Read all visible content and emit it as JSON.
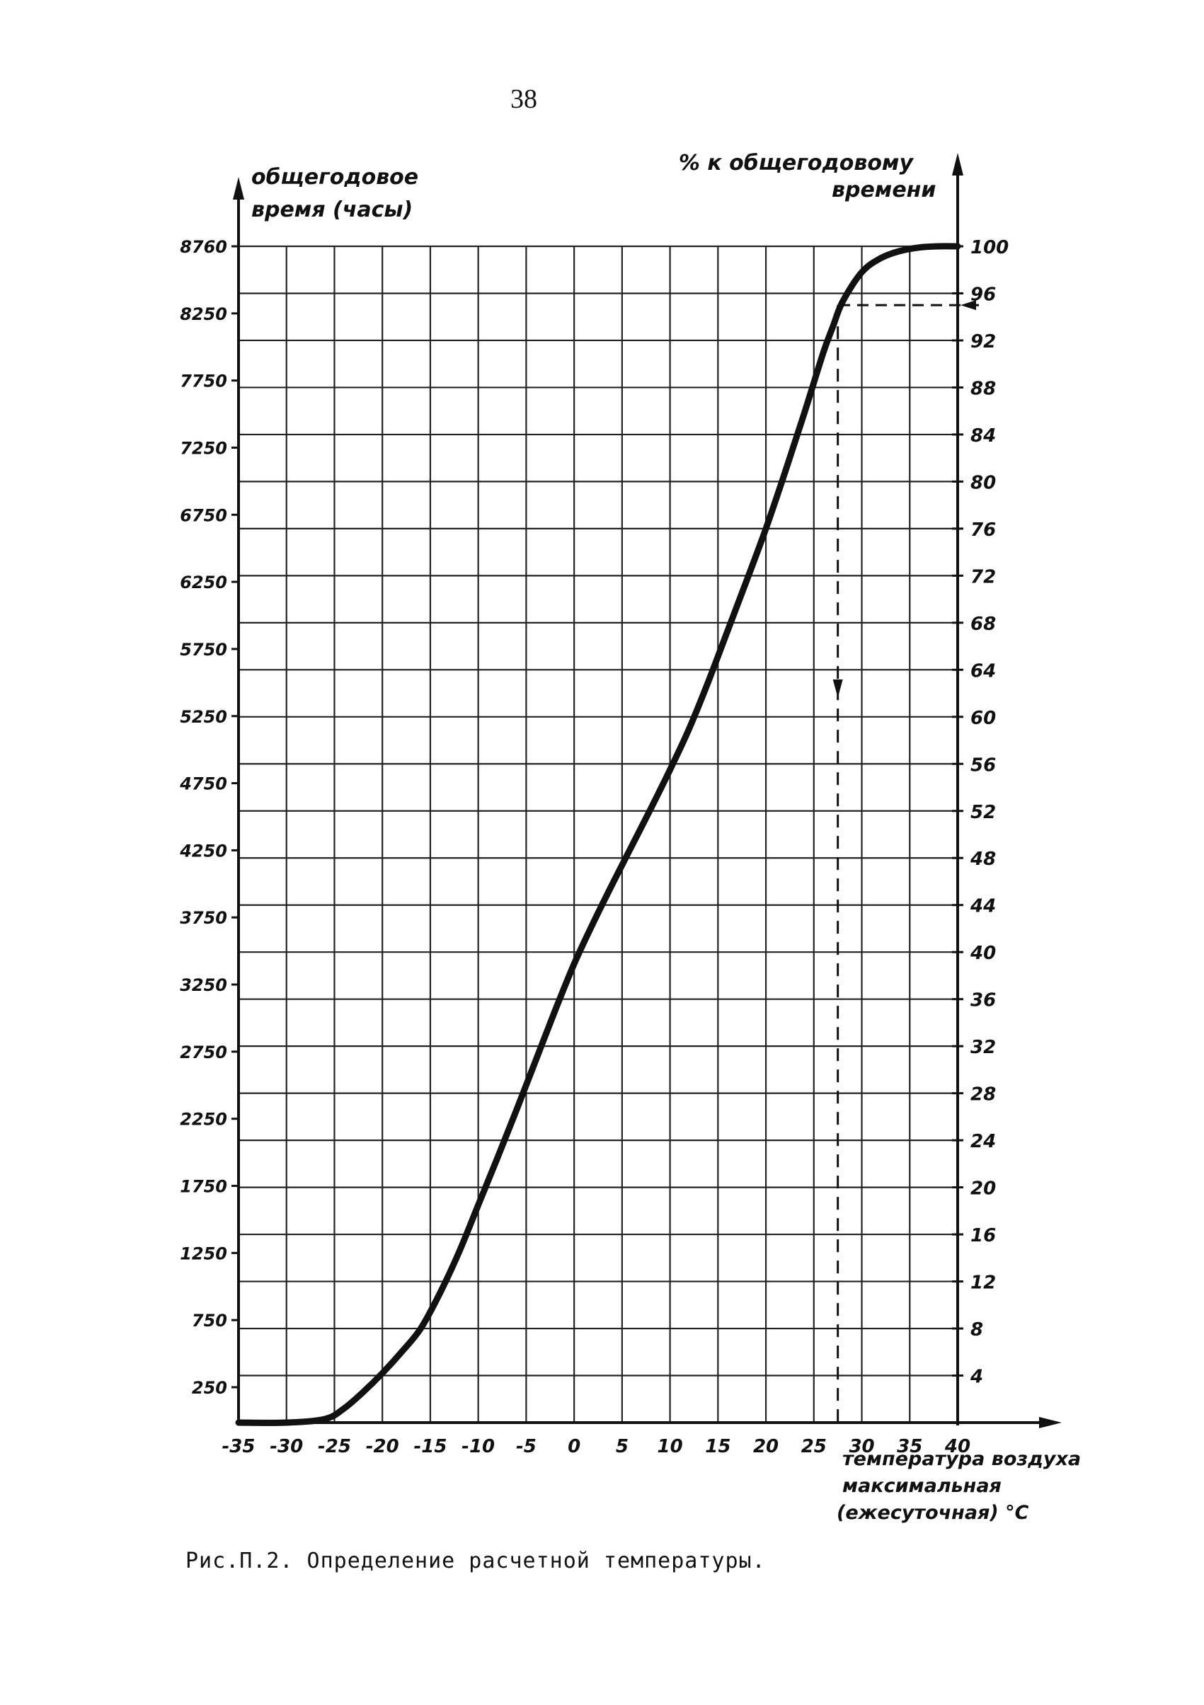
{
  "page_number": "38",
  "caption": "Рис.П.2. Определение расчетной температуры.",
  "left_axis_label": [
    "общегодовое",
    "время (часы)"
  ],
  "right_axis_label": [
    "% к общегодовому",
    "времени"
  ],
  "x_axis_label": [
    "температура воздуха",
    "максимальная",
    "(ежесуточная) °С"
  ],
  "chart_data": {
    "type": "line",
    "title": "",
    "xlabel": "температура воздуха максимальная (ежесуточная) °С",
    "ylabel_left": "общегодовое время (часы)",
    "ylabel_right": "% к общегодовому времени",
    "xlim": [
      -35,
      40
    ],
    "ylim_right": [
      0,
      100
    ],
    "x_ticks": [
      "-35",
      "-30",
      "-25",
      "-20",
      "-15",
      "-10",
      "-5",
      "0",
      "5",
      "10",
      "15",
      "20",
      "25",
      "30",
      "35",
      "40"
    ],
    "left_ticks": [
      "8760",
      "8250",
      "7750",
      "7250",
      "6750",
      "6250",
      "5750",
      "5250",
      "4750",
      "4250",
      "3750",
      "3250",
      "2750",
      "2250",
      "1750",
      "1250",
      "750",
      "250"
    ],
    "right_ticks": [
      "100",
      "96",
      "92",
      "88",
      "84",
      "80",
      "76",
      "72",
      "68",
      "64",
      "60",
      "56",
      "52",
      "48",
      "44",
      "40",
      "36",
      "32",
      "28",
      "24",
      "20",
      "16",
      "12",
      "8",
      "4"
    ],
    "grid": true,
    "series": [
      {
        "x": [
          -35,
          -30,
          -26,
          -24,
          -22,
          -20,
          -18,
          -16,
          -14,
          -12,
          -10,
          -8,
          -6,
          -4,
          -2,
          0,
          2,
          4,
          6,
          8,
          10,
          12,
          14,
          16,
          18,
          20,
          22,
          24,
          26,
          27,
          28,
          30,
          32,
          34,
          36,
          38,
          40
        ],
        "y": [
          0,
          0,
          0.3,
          1.2,
          2.6,
          4.2,
          6.0,
          8.0,
          11.0,
          14.5,
          18.5,
          22.5,
          26.6,
          30.8,
          35.0,
          39.0,
          42.5,
          45.8,
          49.0,
          52.2,
          55.5,
          59.0,
          63.0,
          67.3,
          71.6,
          76.0,
          80.8,
          85.8,
          91.0,
          93.2,
          95.3,
          97.8,
          99.0,
          99.6,
          99.9,
          100,
          100
        ]
      }
    ],
    "annotations": [
      {
        "type": "dashed-reference",
        "y": 95,
        "x": 27.5
      }
    ]
  }
}
